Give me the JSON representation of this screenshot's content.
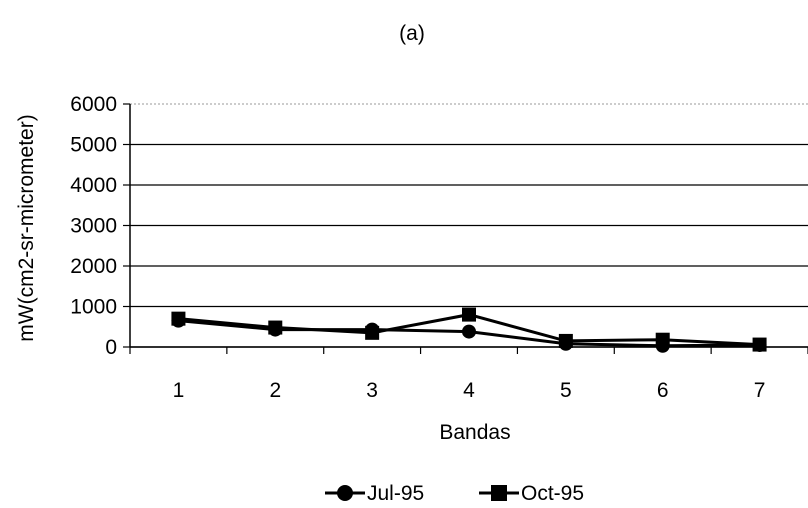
{
  "chart_data": {
    "type": "line",
    "title": "(a)",
    "xlabel": "Bandas",
    "ylabel": "mW(cm2-sr-micrometer)",
    "categories": [
      "1",
      "2",
      "3",
      "4",
      "5",
      "6",
      "7"
    ],
    "ylim": [
      0,
      6000
    ],
    "yticks": [
      0,
      1000,
      2000,
      3000,
      4000,
      5000,
      6000
    ],
    "grid": true,
    "legend": "bottom",
    "series": [
      {
        "name": "Jul-95",
        "marker": "circle",
        "color": "#000000",
        "values": [
          650,
          430,
          430,
          380,
          80,
          30,
          50
        ]
      },
      {
        "name": "Oct-95",
        "marker": "square",
        "color": "#000000",
        "values": [
          700,
          480,
          350,
          800,
          150,
          180,
          60
        ]
      }
    ]
  }
}
